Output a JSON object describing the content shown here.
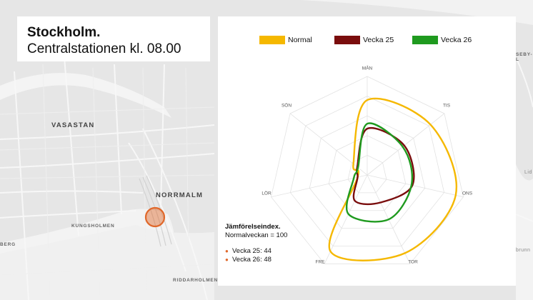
{
  "title": {
    "line1": "Stockholm.",
    "line2": "Centralstationen kl. 08.00"
  },
  "map": {
    "labels": {
      "vasastan": "VASASTAN",
      "norrmalm": "NORRMALM",
      "kungsholmen": "KUNGSHOLMEN",
      "riddarholmen": "RIDDARHOLMEN",
      "berg": "BERG",
      "seby": "SEBY-L",
      "lid": "Lid",
      "brunn": "brunn"
    },
    "marker_color": "#e0682b"
  },
  "chart_data": {
    "type": "radar",
    "axes": [
      "MÅN",
      "TIS",
      "ONS",
      "TOR",
      "FRE",
      "LÖR",
      "SÖN"
    ],
    "rmax": 100,
    "series": [
      {
        "name": "Normal",
        "color": "#f5b800",
        "values": [
          76,
          82,
          92,
          88,
          86,
          10,
          18
        ]
      },
      {
        "name": "Vecka 25",
        "color": "#7a0d0d",
        "values": [
          47,
          48,
          47,
          31,
          29,
          10,
          13
        ]
      },
      {
        "name": "Vecka 26",
        "color": "#1f9a1f",
        "values": [
          52,
          46,
          46,
          50,
          44,
          14,
          12
        ]
      }
    ]
  },
  "index_box": {
    "title": "Jämförelseindex.",
    "subtitle": "Normalveckan = 100",
    "items": [
      "Vecka 25: 44",
      "Vecka 26: 48"
    ]
  }
}
